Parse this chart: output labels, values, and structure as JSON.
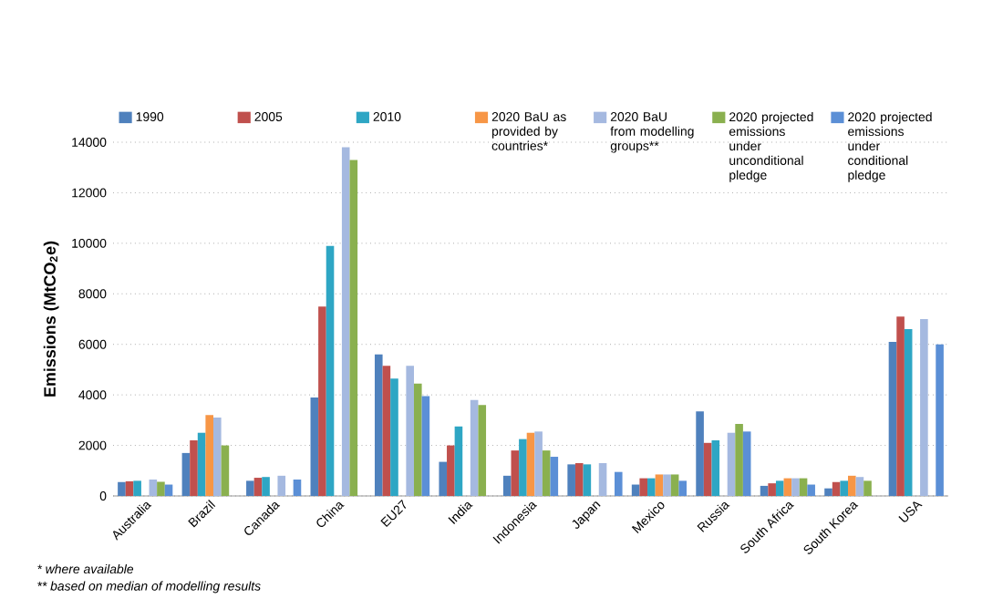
{
  "chart_data": {
    "type": "bar",
    "ylabel": "Emissions (MtCO$_{2}$e)",
    "categories": [
      "Australia",
      "Brazil",
      "Canada",
      "China",
      "EU27",
      "India",
      "Indonesia",
      "Japan",
      "Mexico",
      "Russia",
      "South Africa",
      "South Korea",
      "USA"
    ],
    "series": [
      {
        "name": "1990",
        "color": "#4f81bd",
        "values": [
          550,
          1700,
          600,
          3900,
          5600,
          1350,
          800,
          1250,
          450,
          3350,
          400,
          300,
          6100
        ]
      },
      {
        "name": "2005",
        "color": "#c0504d",
        "values": [
          580,
          2200,
          720,
          7500,
          5150,
          2000,
          1800,
          1300,
          700,
          2100,
          500,
          550,
          7100
        ]
      },
      {
        "name": "2010",
        "color": "#2ea6c4",
        "values": [
          600,
          2500,
          750,
          9900,
          4650,
          2750,
          2250,
          1250,
          700,
          2200,
          600,
          600,
          6600
        ]
      },
      {
        "name": "2020 BaU as provided by countries*",
        "color": "#f79646",
        "values": [
          null,
          3200,
          null,
          null,
          null,
          null,
          2500,
          null,
          850,
          null,
          700,
          800,
          null
        ]
      },
      {
        "name": "2020 BaU from modelling groups**",
        "color": "#a5b9e0",
        "values": [
          650,
          3100,
          800,
          13800,
          5150,
          3800,
          2550,
          1300,
          850,
          2500,
          700,
          750,
          7000
        ]
      },
      {
        "name": "2020 projected emissions under unconditional pledge",
        "color": "#8ab04f",
        "values": [
          560,
          2000,
          null,
          13300,
          4450,
          3600,
          1800,
          null,
          850,
          2850,
          700,
          600,
          null
        ]
      },
      {
        "name": "2020 projected emissions under conditional pledge",
        "color": "#5b8fd6",
        "values": [
          450,
          null,
          650,
          null,
          3950,
          null,
          1550,
          950,
          600,
          2550,
          450,
          null,
          6000
        ]
      }
    ],
    "ylim": [
      0,
      14000
    ],
    "yticks": [
      0,
      2000,
      4000,
      6000,
      8000,
      10000,
      12000,
      14000
    ],
    "grid": "y",
    "legend": "top",
    "annotations": [
      "* where available",
      "** based on median of modelling results"
    ]
  }
}
